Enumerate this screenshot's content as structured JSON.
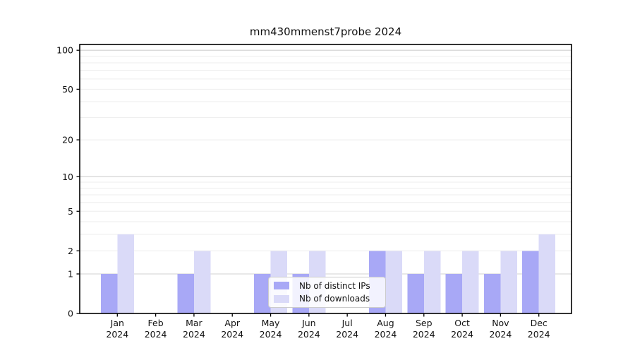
{
  "chart_data": {
    "type": "bar",
    "title": "mm430mmenst7probe 2024",
    "categories": [
      "Jan",
      "Feb",
      "Mar",
      "Apr",
      "May",
      "Jun",
      "Jul",
      "Aug",
      "Sep",
      "Oct",
      "Nov",
      "Dec"
    ],
    "category_sublabel": "2024",
    "series": [
      {
        "name": "Nb of distinct IPs",
        "color": "#a8a8f6",
        "values": [
          1,
          0,
          1,
          0,
          1,
          1,
          0,
          2,
          1,
          1,
          1,
          2
        ]
      },
      {
        "name": "Nb of downloads",
        "color": "#dadaf8",
        "values": [
          3,
          0,
          2,
          0,
          2,
          2,
          0,
          2,
          2,
          2,
          2,
          3
        ]
      }
    ],
    "y_scale": "log1p",
    "y_ticks": [
      0,
      1,
      2,
      5,
      10,
      20,
      50,
      100
    ],
    "ylim": [
      0,
      110
    ],
    "xlabel": "",
    "ylabel": "",
    "grid": {
      "major_lines": [
        1,
        10,
        100
      ],
      "minor_lines": [
        2,
        3,
        4,
        5,
        6,
        7,
        8,
        9,
        20,
        30,
        40,
        50,
        60,
        70,
        80,
        90
      ],
      "major_color": "#d0d0d0",
      "minor_color": "#ededed"
    },
    "legend_position": "lower center inside",
    "axis_color": "#000000",
    "background_color": "#ffffff"
  }
}
